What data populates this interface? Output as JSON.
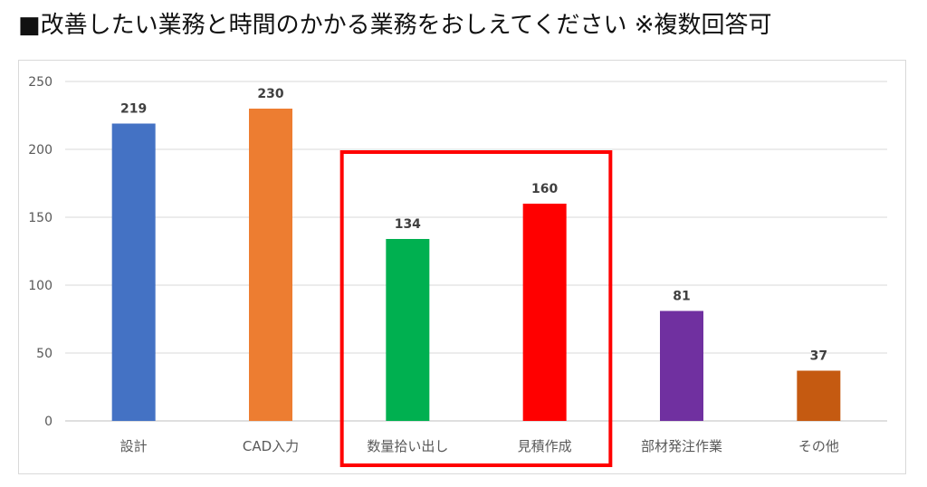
{
  "header": {
    "title": "■改善したい業務と時間のかかる業務をおしえてください ※複数回答可"
  },
  "chart_data": {
    "type": "bar",
    "title": "",
    "xlabel": "",
    "ylabel": "",
    "categories": [
      "設計",
      "CAD入力",
      "数量拾い出し",
      "見積作成",
      "部材発注作業",
      "その他"
    ],
    "values": [
      219,
      230,
      134,
      160,
      81,
      37
    ],
    "bar_colors": [
      "#4472c4",
      "#ed7d31",
      "#00b050",
      "#ff0000",
      "#7030a0",
      "#c55a11"
    ],
    "ylim": [
      0,
      250
    ],
    "yticks": [
      0,
      50,
      100,
      150,
      200,
      250
    ],
    "grid": true,
    "legend": "none",
    "data_labels": true,
    "highlight": {
      "categories": [
        "数量拾い出し",
        "見積作成"
      ],
      "color": "#ff0000"
    }
  }
}
